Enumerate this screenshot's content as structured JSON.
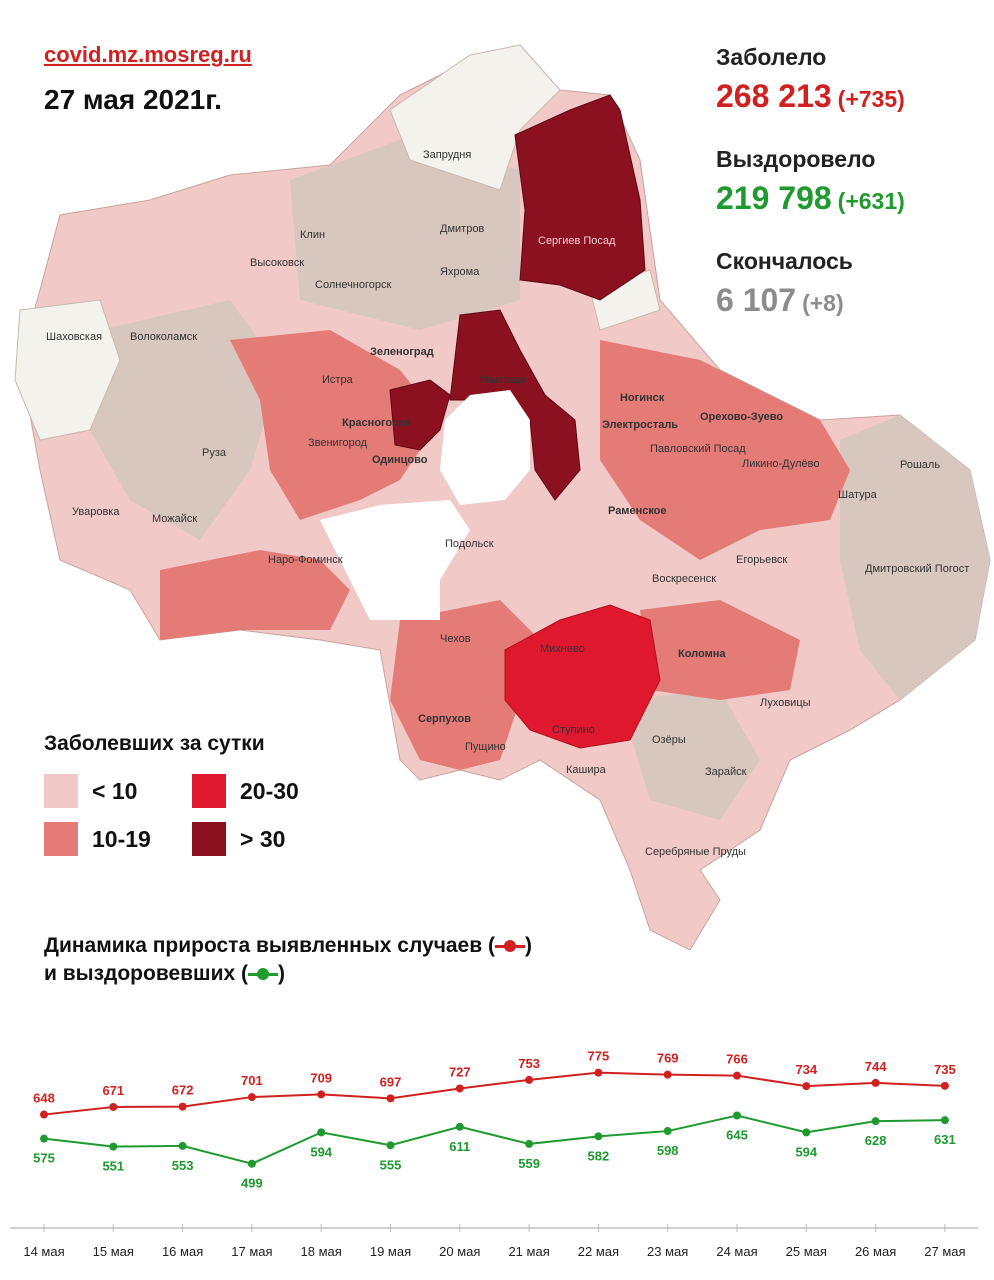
{
  "header": {
    "site": "covid.mz.mosreg.ru",
    "date": "27 мая 2021г."
  },
  "stats": {
    "sick_label": "Заболело",
    "sick_value": "268 213",
    "sick_delta": "(+735)",
    "recovered_label": "Выздоровело",
    "recovered_value": "219 798",
    "recovered_delta": "(+631)",
    "died_label": "Скончалось",
    "died_value": "6 107",
    "died_delta": "(+8)"
  },
  "colors": {
    "red_text": "#d0201f",
    "green_text": "#1e9a2e",
    "gray_text": "#8c8c8c",
    "lt10": "#f1c9c6",
    "c10_19": "#e47b76",
    "c20_30": "#e0182f",
    "gt30": "#8b1020",
    "gray_area": "#d8c7be",
    "white_area": "#f3f2ec"
  },
  "legend": {
    "title": "Заболевших за сутки",
    "items": [
      "< 10",
      "10-19",
      "20-30",
      "> 30"
    ]
  },
  "map": {
    "cities": [
      "Дмитров",
      "Яхрома",
      "Клин",
      "Высоковск",
      "Солнечногорск",
      "Сергиев Посад",
      "Запрудня",
      "Шаховская",
      "Волоколамск",
      "Зеленоград",
      "Истра",
      "Мытищи",
      "Красногорск",
      "Звенигород",
      "Одинцово",
      "Ногинск",
      "Электросталь",
      "Орехово-Зуево",
      "Павловский Посад",
      "Ликино-Дулёво",
      "Рошаль",
      "Шатура",
      "Руза",
      "Уваровка",
      "Можайск",
      "Наро-Фоминск",
      "Раменское",
      "Подольск",
      "Воскресенск",
      "Егорьевск",
      "Дмитровский Погост",
      "Чехов",
      "Михнево",
      "Коломна",
      "Луховицы",
      "Серпухов",
      "Пущино",
      "Ступино",
      "Озёры",
      "Кашира",
      "Зарайск",
      "Серебряные Пруды"
    ]
  },
  "dynamics": {
    "title_line1": "Динамика прироста выявленных случаев (",
    "title_line2": "и выздоровевших (",
    "close": ")"
  },
  "chart_data": {
    "type": "line",
    "categories": [
      "14 мая",
      "15 мая",
      "16 мая",
      "17 мая",
      "18 мая",
      "19 мая",
      "20 мая",
      "21 мая",
      "22 мая",
      "23 мая",
      "24 мая",
      "25 мая",
      "26 мая",
      "27 мая"
    ],
    "series": [
      {
        "values": [
          648,
          671,
          672,
          701,
          709,
          697,
          727,
          753,
          775,
          769,
          766,
          734,
          744,
          735
        ],
        "color": "#d0201f"
      },
      {
        "values": [
          575,
          551,
          553,
          499,
          594,
          555,
          611,
          559,
          582,
          598,
          645,
          594,
          628,
          631
        ],
        "color": "#1e9a2e"
      }
    ],
    "title": "Динамика прироста выявленных случаев и выздоровевших",
    "xlabel": "",
    "ylabel": "",
    "grid": false
  }
}
